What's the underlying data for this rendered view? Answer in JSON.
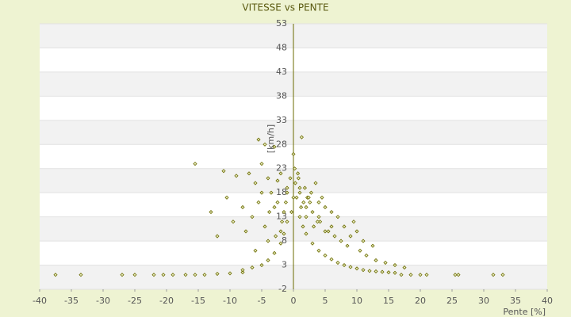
{
  "chart_data": {
    "type": "scatter",
    "title": "VITESSE vs PENTE",
    "x_label": "Pente [%]",
    "y_label": "[km/h]",
    "color": "#6b6b00",
    "xlim": [
      -40,
      40
    ],
    "xticks": [
      -40,
      -35,
      -30,
      -25,
      -20,
      -15,
      -10,
      -5,
      0,
      5,
      10,
      15,
      20,
      25,
      30,
      35,
      40
    ],
    "ylim": [
      -2,
      53
    ],
    "yticks": [
      -2,
      3,
      8,
      13,
      18,
      23,
      28,
      33,
      38,
      43,
      48,
      53
    ],
    "grid": true,
    "x": [
      -37.5,
      -33.5,
      -27,
      -25,
      -22,
      -20.5,
      -19,
      -17,
      -15.5,
      -14,
      -12,
      -10,
      -8,
      17,
      18.5,
      20,
      21,
      25.5,
      26,
      31.5,
      33,
      -8,
      -6.5,
      -5,
      -4,
      -3,
      -2,
      -1.5,
      -1,
      1,
      1.5,
      2,
      3,
      4,
      5,
      6,
      7,
      8,
      9,
      10,
      11,
      12,
      13,
      14,
      15,
      16,
      -15.5,
      -11,
      -5.5,
      -4.5,
      -3,
      0,
      1.3,
      -9,
      -7,
      -6,
      -5,
      -4,
      -3.5,
      -2.5,
      -2,
      -1,
      -0.5,
      0.3,
      0.7,
      1,
      1.8,
      2.2,
      2.8,
      3.5,
      4,
      4.5,
      5,
      6,
      7,
      8,
      9.5,
      10,
      11,
      12.5,
      -13,
      -12,
      -10.5,
      -9.5,
      -8,
      -7.5,
      -6.5,
      -5.5,
      -4.5,
      -3.8,
      -2.8,
      -1.8,
      -1.2,
      -0.3,
      0.5,
      1.2,
      2,
      2.6,
      3.2,
      4.2,
      5.5,
      6.5,
      7.5,
      8.5,
      9,
      10.5,
      11.5,
      13,
      14.5,
      16,
      17.5,
      -6,
      -4,
      -2,
      0,
      2,
      4,
      6,
      -3,
      -1,
      1,
      3,
      5,
      -5,
      -2.5,
      0.8,
      2.4,
      3.8,
      -1.5,
      0.2,
      1.6
    ],
    "y": [
      1,
      1,
      1,
      1,
      1,
      1,
      1,
      1,
      1,
      1,
      1.2,
      1.3,
      1.5,
      1,
      1,
      1,
      1,
      1,
      1,
      1,
      1,
      2,
      2.5,
      3,
      4,
      5.5,
      7.5,
      9.5,
      12,
      13,
      11,
      9.5,
      7.5,
      6,
      5,
      4.2,
      3.5,
      3,
      2.6,
      2.3,
      2,
      1.8,
      1.7,
      1.6,
      1.5,
      1.4,
      24,
      22.5,
      29,
      28,
      27.5,
      26,
      29.5,
      21.5,
      22,
      20,
      24,
      21,
      18,
      20.5,
      22,
      19,
      21,
      20,
      22,
      18,
      19,
      17,
      18,
      20,
      16,
      17,
      15,
      14,
      13,
      11,
      12,
      10,
      8,
      7,
      14,
      9,
      17,
      12,
      15,
      10,
      13,
      16,
      11,
      14,
      9,
      12,
      16,
      14,
      17,
      15,
      13,
      16,
      11,
      12,
      10,
      9,
      8,
      7,
      9,
      6,
      5,
      4,
      3.5,
      3,
      2.5,
      6,
      8,
      10,
      17,
      15,
      13,
      11,
      15,
      18,
      19,
      14,
      10,
      18,
      16,
      21,
      17,
      12,
      14,
      23,
      16
    ]
  }
}
